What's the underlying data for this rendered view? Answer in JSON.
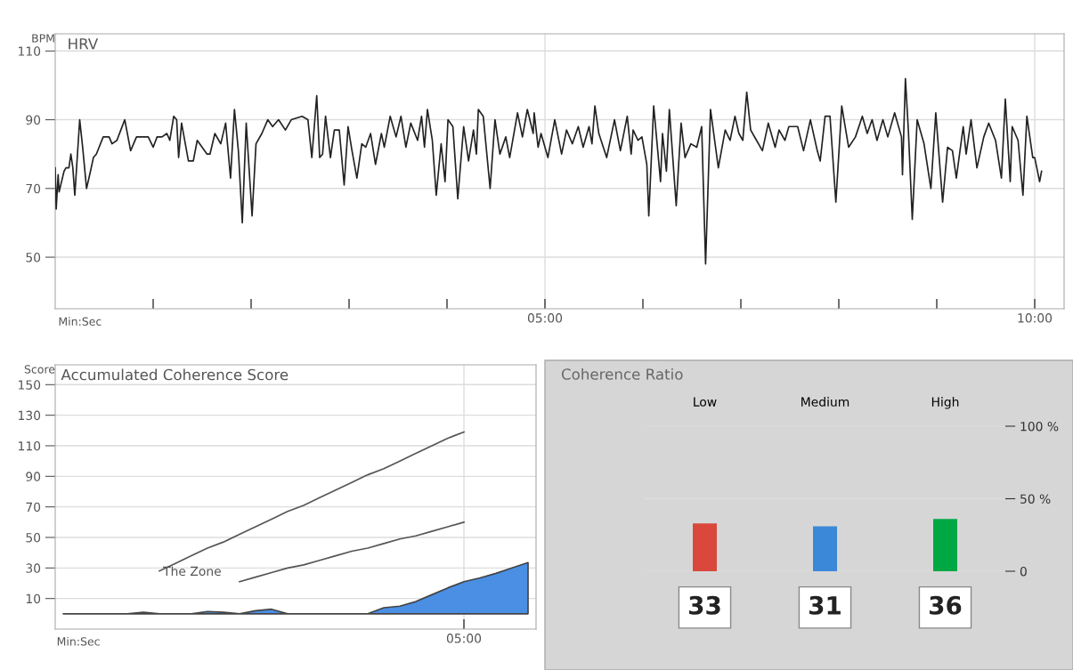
{
  "chart_data": [
    {
      "type": "line",
      "title": "HRV",
      "ylabel": "BPM",
      "xlabel": "Min:Sec",
      "xlim": [
        0,
        10.3
      ],
      "ylim": [
        35,
        115
      ],
      "xticks": [
        {
          "value": 1,
          "label": null
        },
        {
          "value": 2,
          "label": null
        },
        {
          "value": 3,
          "label": null
        },
        {
          "value": 4,
          "label": null
        },
        {
          "value": 5,
          "label": "05:00"
        },
        {
          "value": 6,
          "label": null
        },
        {
          "value": 7,
          "label": null
        },
        {
          "value": 8,
          "label": null
        },
        {
          "value": 9,
          "label": null
        },
        {
          "value": 10,
          "label": "10:00"
        }
      ],
      "yticks": [
        50,
        70,
        90,
        110
      ],
      "grid": true,
      "series": [
        {
          "color": "#222222",
          "x": [
            0.0,
            0.01,
            0.03,
            0.04,
            0.09,
            0.11,
            0.14,
            0.16,
            0.18,
            0.2,
            0.25,
            0.28,
            0.32,
            0.36,
            0.39,
            0.42,
            0.49,
            0.55,
            0.58,
            0.63,
            0.67,
            0.71,
            0.77,
            0.83,
            0.88,
            0.95,
            1.0,
            1.04,
            1.09,
            1.14,
            1.17,
            1.21,
            1.24,
            1.26,
            1.29,
            1.36,
            1.41,
            1.45,
            1.5,
            1.55,
            1.58,
            1.63,
            1.69,
            1.74,
            1.79,
            1.83,
            1.87,
            1.91,
            1.95,
            2.01,
            2.05,
            2.11,
            2.17,
            2.22,
            2.28,
            2.35,
            2.41,
            2.52,
            2.58,
            2.62,
            2.67,
            2.7,
            2.73,
            2.76,
            2.81,
            2.85,
            2.9,
            2.95,
            2.99,
            3.03,
            3.08,
            3.13,
            3.17,
            3.22,
            3.27,
            3.33,
            3.36,
            3.42,
            3.48,
            3.53,
            3.58,
            3.63,
            3.7,
            3.74,
            3.77,
            3.8,
            3.85,
            3.89,
            3.94,
            3.98,
            4.01,
            4.06,
            4.11,
            4.17,
            4.22,
            4.27,
            4.3,
            4.32,
            4.37,
            4.44,
            4.49,
            4.54,
            4.6,
            4.64,
            4.72,
            4.77,
            4.82,
            4.88,
            4.89,
            4.93,
            4.96,
            5.03,
            5.1,
            5.17,
            5.22,
            5.28,
            5.34,
            5.39,
            5.45,
            5.48,
            5.51,
            5.55,
            5.63,
            5.71,
            5.77,
            5.84,
            5.88,
            5.9,
            5.95,
            5.99,
            6.04,
            6.06,
            6.11,
            6.18,
            6.2,
            6.24,
            6.27,
            6.34,
            6.39,
            6.43,
            6.49,
            6.55,
            6.6,
            6.64,
            6.69,
            6.77,
            6.84,
            6.89,
            6.94,
            6.98,
            7.02,
            7.06,
            7.1,
            7.16,
            7.22,
            7.28,
            7.35,
            7.39,
            7.45,
            7.49,
            7.58,
            7.64,
            7.71,
            7.78,
            7.81,
            7.86,
            7.91,
            7.97,
            8.03,
            8.1,
            8.17,
            8.24,
            8.29,
            8.34,
            8.39,
            8.45,
            8.5,
            8.57,
            8.64,
            8.65,
            8.68,
            8.71,
            8.75,
            8.8,
            8.87,
            8.94,
            8.99,
            9.06,
            9.11,
            9.16,
            9.2,
            9.27,
            9.3,
            9.35,
            9.41,
            9.48,
            9.53,
            9.6,
            9.66,
            9.7,
            9.75,
            9.77,
            9.83,
            9.88,
            9.92,
            9.98,
            10.0,
            10.05,
            10.07
          ],
          "values": [
            76,
            64,
            74,
            69,
            75,
            76,
            76,
            80,
            76,
            68,
            90,
            82,
            70,
            75,
            79,
            80,
            85,
            85,
            83,
            84,
            87,
            90,
            81,
            85,
            85,
            85,
            82,
            85,
            85,
            86,
            84,
            91,
            90,
            79,
            89,
            78,
            78,
            84,
            82,
            80,
            80,
            86,
            83,
            89,
            73,
            93,
            81,
            60,
            89,
            62,
            83,
            86,
            90,
            88,
            90,
            87,
            90,
            91,
            90,
            79,
            97,
            79,
            80,
            91,
            79,
            87,
            87,
            71,
            88,
            81,
            73,
            83,
            82,
            86,
            77,
            86,
            82,
            91,
            85,
            91,
            82,
            89,
            84,
            91,
            82,
            93,
            84,
            68,
            83,
            72,
            90,
            88,
            67,
            88,
            78,
            87,
            80,
            93,
            91,
            70,
            90,
            80,
            85,
            79,
            92,
            85,
            93,
            86,
            92,
            82,
            86,
            79,
            90,
            80,
            87,
            83,
            88,
            82,
            88,
            83,
            94,
            86,
            79,
            90,
            81,
            91,
            80,
            87,
            84,
            85,
            77,
            62,
            94,
            72,
            86,
            75,
            93,
            65,
            89,
            79,
            83,
            82,
            88,
            48,
            93,
            76,
            87,
            84,
            91,
            86,
            84,
            98,
            87,
            84,
            81,
            89,
            82,
            87,
            84,
            88,
            88,
            81,
            90,
            81,
            78,
            91,
            91,
            66,
            94,
            82,
            85,
            91,
            86,
            90,
            84,
            90,
            85,
            92,
            85,
            74,
            102,
            87,
            61,
            90,
            83,
            70,
            92,
            66,
            82,
            81,
            73,
            88,
            80,
            90,
            76,
            85,
            89,
            84,
            73,
            96,
            72,
            88,
            84,
            68,
            91,
            79,
            79,
            72,
            75
          ]
        }
      ]
    },
    {
      "type": "area",
      "title": "Accumulated Coherence Score",
      "ylabel": "Score",
      "xlabel": "Min:Sec",
      "ylim": [
        -10,
        163
      ],
      "categories": [
        null,
        null,
        null,
        null,
        null,
        null,
        null,
        null,
        null,
        null,
        null,
        null,
        null,
        null,
        null,
        null,
        null,
        null,
        null,
        null,
        null,
        null,
        null,
        null,
        null,
        "05:00",
        null,
        null,
        null,
        null
      ],
      "yticks": [
        10,
        30,
        50,
        70,
        90,
        110,
        130,
        150
      ],
      "grid": true,
      "annotations": [
        "The Zone"
      ],
      "series": [
        {
          "type": "area",
          "color": "#4a8fe3",
          "values": [
            0,
            0,
            0,
            0,
            0,
            1,
            0,
            0,
            0,
            1.5,
            1,
            0,
            2,
            3,
            0,
            0,
            0,
            0,
            0,
            0,
            4,
            5,
            8,
            12.5,
            17,
            21,
            23.5,
            26.5,
            30,
            33.5
          ]
        },
        {
          "type": "line",
          "color": "#555555",
          "values": [
            null,
            null,
            null,
            null,
            null,
            null,
            28,
            33,
            38,
            43,
            47,
            52,
            57,
            62,
            67,
            71,
            76,
            81,
            86,
            91,
            95,
            100,
            105,
            110,
            115,
            119,
            null,
            null,
            null,
            null
          ]
        },
        {
          "type": "line",
          "color": "#555555",
          "values": [
            null,
            null,
            null,
            null,
            null,
            null,
            null,
            null,
            null,
            null,
            null,
            21,
            24,
            27,
            30,
            32,
            35,
            38,
            41,
            43,
            46,
            49,
            51,
            54,
            57,
            60,
            null,
            null,
            null,
            null
          ]
        }
      ]
    },
    {
      "type": "bar",
      "title": "Coherence Ratio",
      "categories": [
        "Low",
        "Medium",
        "High"
      ],
      "values": [
        33,
        31,
        36
      ],
      "colors": [
        "#d9483b",
        "#3b88d8",
        "#00a844"
      ],
      "ylim": [
        0,
        100
      ],
      "yticks": [
        {
          "value": 0,
          "label": "0"
        },
        {
          "value": 50,
          "label": "50 %"
        },
        {
          "value": 100,
          "label": "100 %"
        }
      ],
      "grid": "y",
      "data_labels": true
    }
  ]
}
